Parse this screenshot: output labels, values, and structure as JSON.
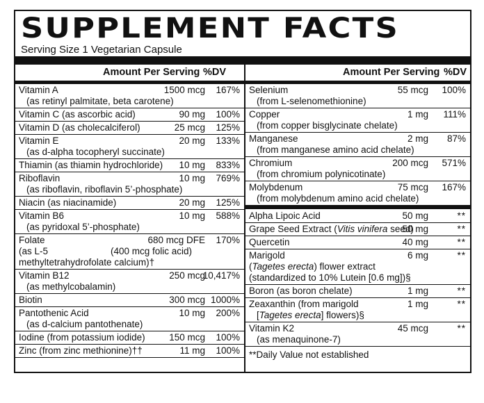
{
  "title": "SUPPLEMENT FACTS",
  "serving_size": "Serving Size 1 Vegetarian Capsule",
  "left_header": {
    "amount": "Amount Per Serving",
    "dv": "%DV"
  },
  "right_header": {
    "amount": "Amount Per Serving",
    "dv": "%DV"
  },
  "left_rows": [
    {
      "name": "Vitamin A",
      "sub": "(as retinyl palmitate, beta carotene)",
      "amount": "1500 mcg",
      "dv": "167%"
    },
    {
      "name": "Vitamin C (as ascorbic acid)",
      "amount": "90 mg",
      "dv": "100%"
    },
    {
      "name": "Vitamin D (as cholecalciferol)",
      "amount": "25 mcg",
      "dv": "125%"
    },
    {
      "name": "Vitamin E",
      "sub": "(as d-alpha tocopheryl succinate)",
      "amount": "20 mg",
      "dv": "133%"
    },
    {
      "name": "Thiamin (as thiamin hydrochloride)",
      "amount": "10 mg",
      "dv": "833%"
    },
    {
      "name": "Riboflavin",
      "sub": "(as riboflavin, riboflavin 5’-phosphate)",
      "amount": "10 mg",
      "dv": "769%"
    },
    {
      "name": "Niacin (as niacinamide)",
      "amount": "20 mg",
      "dv": "125%"
    },
    {
      "name": "Vitamin B6",
      "sub": "(as pyridoxal 5’-phosphate)",
      "amount": "10 mg",
      "dv": "588%"
    },
    {
      "name": "Folate",
      "amount": "680 mcg DFE",
      "dv": "170%",
      "line2_left": "(as L-5",
      "line2_right": "(400 mcg folic acid)",
      "line3": "methyltetrahydrofolate calcium)†"
    },
    {
      "name": "Vitamin B12",
      "sub": "(as methylcobalamin)",
      "amount": "250 mcg",
      "dv": "10,417%"
    },
    {
      "name": "Biotin",
      "amount": "300 mcg",
      "dv": "1000%"
    },
    {
      "name": "Pantothenic Acid",
      "sub": "(as d-calcium pantothenate)",
      "amount": "10 mg",
      "dv": "200%"
    },
    {
      "name": "Iodine (from potassium iodide)",
      "amount": "150 mcg",
      "dv": "100%"
    },
    {
      "name": "Zinc (from zinc methionine)††",
      "amount": "11 mg",
      "dv": "100%"
    }
  ],
  "right_minerals": [
    {
      "name": "Selenium",
      "sub": "(from L-selenomethionine)",
      "amount": "55 mcg",
      "dv": "100%"
    },
    {
      "name": "Copper",
      "sub": "(from copper bisglycinate chelate)",
      "amount": "1 mg",
      "dv": "111%"
    },
    {
      "name": "Manganese",
      "sub": "(from manganese amino acid chelate)",
      "amount": "2 mg",
      "dv": "87%"
    },
    {
      "name": "Chromium",
      "sub": "(from chromium polynicotinate)",
      "amount": "200 mcg",
      "dv": "571%"
    },
    {
      "name": "Molybdenum",
      "sub": "(from molybdenum amino acid chelate)",
      "amount": "75 mcg",
      "dv": "167%"
    }
  ],
  "right_other": [
    {
      "name": "Alpha Lipoic Acid",
      "amount": "50 mg",
      "dv": "**"
    },
    {
      "name_pre": "Grape Seed Extract (",
      "name_italic": "Vitis vinifera",
      "name_post": " seed)",
      "amount": "50 mg",
      "dv": "**"
    },
    {
      "name": "Quercetin",
      "amount": "40 mg",
      "dv": "**"
    },
    {
      "name": "Marigold",
      "amount": "6 mg",
      "dv": "**",
      "line2_pre": "(",
      "line2_italic": "Tagetes erecta",
      "line2_post": ") flower extract",
      "line3": "(standardized to 10% Lutein [0.6 mg])§"
    },
    {
      "name": "Boron (as boron chelate)",
      "amount": "1 mg",
      "dv": "**"
    },
    {
      "name": "Zeaxanthin (from marigold",
      "amount": "1 mg",
      "dv": "**",
      "line2_pre": "[",
      "line2_italic": "Tagetes erecta",
      "line2_post": "] flowers)§"
    },
    {
      "name": "Vitamin K2",
      "sub": "(as menaquinone-7)",
      "amount": "45 mcg",
      "dv": "**"
    }
  ],
  "footnote": "**Daily Value not established"
}
